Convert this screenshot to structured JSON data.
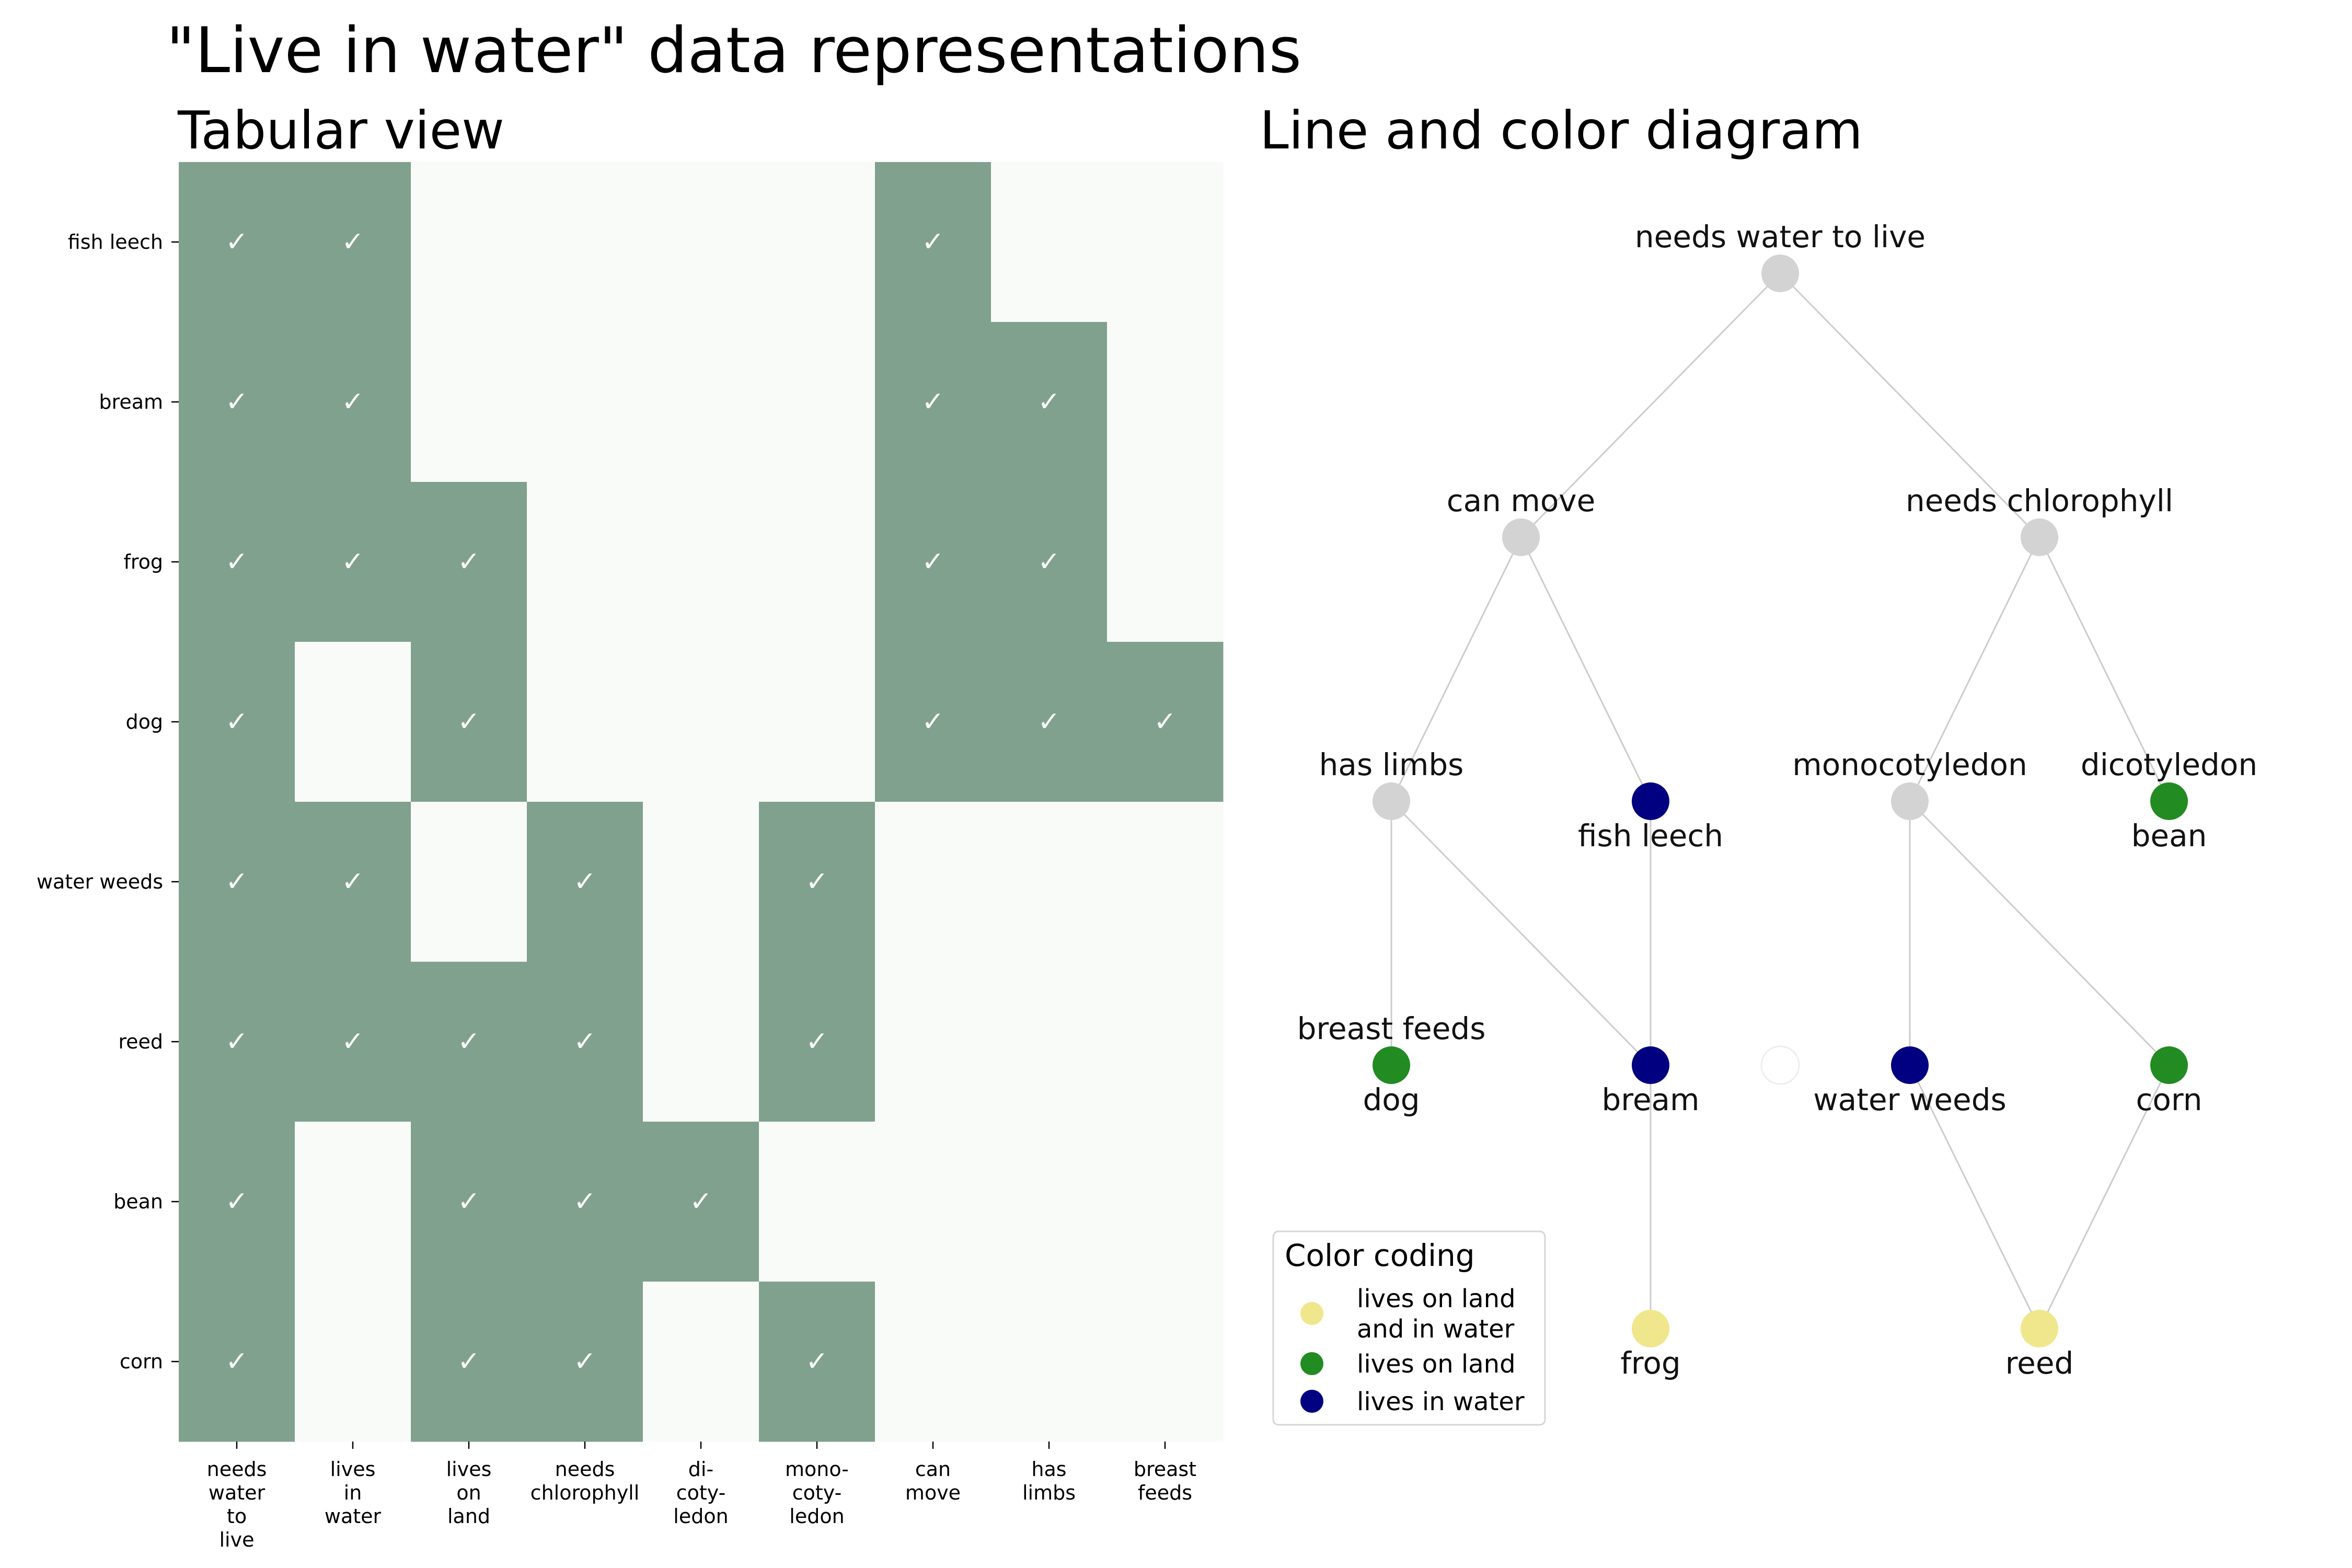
{
  "title": "\"Live in water\" data representations",
  "table": {
    "title": "Tabular view",
    "rows": [
      "fish leech",
      "bream",
      "frog",
      "dog",
      "water weeds",
      "reed",
      "bean",
      "corn"
    ],
    "columns": [
      [
        "needs",
        "water",
        "to",
        "live"
      ],
      [
        "lives",
        "in",
        "water"
      ],
      [
        "lives",
        "on",
        "land"
      ],
      [
        "needs",
        "chlorophyll"
      ],
      [
        "di-",
        "coty-",
        "ledon"
      ],
      [
        "mono-",
        "coty-",
        "ledon"
      ],
      [
        "can",
        "move"
      ],
      [
        "has",
        "limbs"
      ],
      [
        "breast",
        "feeds"
      ]
    ],
    "matrix": [
      [
        1,
        1,
        0,
        0,
        0,
        0,
        1,
        0,
        0
      ],
      [
        1,
        1,
        0,
        0,
        0,
        0,
        1,
        1,
        0
      ],
      [
        1,
        1,
        1,
        0,
        0,
        0,
        1,
        1,
        0
      ],
      [
        1,
        0,
        1,
        0,
        0,
        0,
        1,
        1,
        1
      ],
      [
        1,
        1,
        0,
        1,
        0,
        1,
        0,
        0,
        0
      ],
      [
        1,
        1,
        1,
        1,
        0,
        1,
        0,
        0,
        0
      ],
      [
        1,
        0,
        1,
        1,
        1,
        0,
        0,
        0,
        0
      ],
      [
        1,
        0,
        1,
        1,
        0,
        1,
        0,
        0,
        0
      ]
    ],
    "check_symbol": "✓",
    "colors": {
      "filled": "#80a18d",
      "empty": "#f9fbf9"
    }
  },
  "diagram": {
    "title": "Line and color diagram",
    "nodes": [
      {
        "id": "n0",
        "top": "needs water to live",
        "bottom": "",
        "color": "#d3d3d3"
      },
      {
        "id": "n1",
        "top": "can move",
        "bottom": "",
        "color": "#d3d3d3"
      },
      {
        "id": "n2",
        "top": "needs chlorophyll",
        "bottom": "",
        "color": "#d3d3d3"
      },
      {
        "id": "n3",
        "top": "has limbs",
        "bottom": "",
        "color": "#d3d3d3"
      },
      {
        "id": "n4",
        "top": "",
        "bottom": "fish leech",
        "color": "#000080"
      },
      {
        "id": "n5",
        "top": "monocotyledon",
        "bottom": "",
        "color": "#d3d3d3"
      },
      {
        "id": "n6",
        "top": "dicotyledon",
        "bottom": "bean",
        "color": "#228b22"
      },
      {
        "id": "n7",
        "top": "breast feeds",
        "bottom": "dog",
        "color": "#228b22"
      },
      {
        "id": "n8",
        "top": "",
        "bottom": "bream",
        "color": "#000080"
      },
      {
        "id": "n9",
        "top": "",
        "bottom": "",
        "color": "#ffffff"
      },
      {
        "id": "n10",
        "top": "",
        "bottom": "water weeds",
        "color": "#000080"
      },
      {
        "id": "n11",
        "top": "",
        "bottom": "corn",
        "color": "#228b22"
      },
      {
        "id": "n12",
        "top": "",
        "bottom": "frog",
        "color": "#f0e68c"
      },
      {
        "id": "n13",
        "top": "",
        "bottom": "reed",
        "color": "#f0e68c"
      }
    ],
    "edges": [
      [
        "n0",
        "n1"
      ],
      [
        "n0",
        "n2"
      ],
      [
        "n1",
        "n3"
      ],
      [
        "n1",
        "n4"
      ],
      [
        "n2",
        "n5"
      ],
      [
        "n2",
        "n6"
      ],
      [
        "n3",
        "n7"
      ],
      [
        "n3",
        "n8"
      ],
      [
        "n4",
        "n8"
      ],
      [
        "n5",
        "n10"
      ],
      [
        "n5",
        "n11"
      ],
      [
        "n8",
        "n12"
      ],
      [
        "n10",
        "n13"
      ],
      [
        "n11",
        "n13"
      ]
    ],
    "legend": {
      "title": "Color coding",
      "items": [
        {
          "lines": [
            "lives on land",
            "and in water"
          ],
          "color": "#f0e68c"
        },
        {
          "lines": [
            "lives on land"
          ],
          "color": "#228b22"
        },
        {
          "lines": [
            "lives in water"
          ],
          "color": "#000080"
        }
      ]
    }
  }
}
